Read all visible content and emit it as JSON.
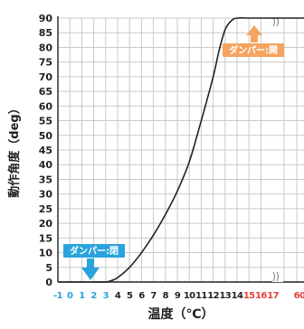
{
  "chart_data": {
    "type": "line",
    "ylabel": "動作角度（deg）",
    "xlabel": "温度（℃）",
    "ylim": [
      0,
      90
    ],
    "yticks": [
      "0",
      "5",
      "10",
      "15",
      "20",
      "25",
      "30",
      "35",
      "40",
      "45",
      "50",
      "55",
      "60",
      "65",
      "70",
      "75",
      "80",
      "85",
      "90"
    ],
    "xticks": [
      {
        "label": "-1",
        "color": "#29a3dc"
      },
      {
        "label": "0",
        "color": "#29a3dc"
      },
      {
        "label": "1",
        "color": "#29a3dc"
      },
      {
        "label": "2",
        "color": "#29a3dc"
      },
      {
        "label": "3",
        "color": "#29a3dc"
      },
      {
        "label": "4",
        "color": "#222222"
      },
      {
        "label": "5",
        "color": "#222222"
      },
      {
        "label": "6",
        "color": "#222222"
      },
      {
        "label": "7",
        "color": "#222222"
      },
      {
        "label": "8",
        "color": "#222222"
      },
      {
        "label": "9",
        "color": "#222222"
      },
      {
        "label": "10",
        "color": "#222222"
      },
      {
        "label": "11",
        "color": "#222222"
      },
      {
        "label": "12",
        "color": "#222222"
      },
      {
        "label": "13",
        "color": "#222222"
      },
      {
        "label": "14",
        "color": "#222222"
      },
      {
        "label": "15",
        "color": "#e8413c"
      },
      {
        "label": "16",
        "color": "#e8413c"
      },
      {
        "label": "17",
        "color": "#e8413c"
      },
      {
        "label": "60",
        "color": "#e8413c"
      }
    ],
    "grid": true,
    "axis_break": true,
    "series": [
      {
        "color": "#222222",
        "x": [
          -1,
          0,
          1,
          2,
          3,
          3.5,
          4,
          5,
          6,
          7,
          8,
          9,
          10,
          11,
          12,
          12.5,
          13,
          13.5,
          14,
          15,
          16,
          17,
          60
        ],
        "y": [
          0,
          0,
          0,
          0,
          0,
          0.5,
          1.5,
          5,
          10,
          16,
          23,
          31,
          41,
          55,
          70,
          79,
          86,
          89,
          90,
          90,
          90,
          90,
          90
        ]
      }
    ],
    "annotations": [
      {
        "text": "ダンパー:開",
        "color": "#f5a460",
        "arrow": "up",
        "x": 17,
        "y": 90
      },
      {
        "text": "ダンパー:閉",
        "color": "#29a3dc",
        "arrow": "down",
        "x": 3,
        "y": 0
      }
    ]
  },
  "colors": {
    "grid": "#c9c9c9",
    "axis": "#222222",
    "closed_accent": "#29a3dc",
    "open_accent": "#f5a460",
    "hot_ticks": "#e8413c"
  }
}
